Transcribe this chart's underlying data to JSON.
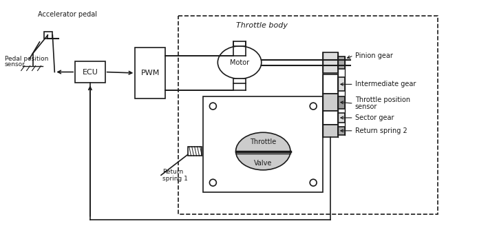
{
  "bg_color": "#ffffff",
  "line_color": "#1a1a1a",
  "figsize": [
    7.09,
    3.31
  ],
  "dpi": 100,
  "title_text": "Throttle body",
  "ecu_label": "ECU",
  "pwm_label": "PWM",
  "motor_label": "Motor",
  "throttle_label1": "Throttle",
  "throttle_label2": "Valve",
  "accel_label": "Accelerator pedal",
  "pedal_label1": "Pedal position",
  "pedal_label2": "sensor",
  "return_spring1_label1": "Return",
  "return_spring1_label2": "spring 1",
  "pinion_label": "Pinion gear",
  "intermediate_label": "Intermediate gear",
  "tps_label1": "Throttle position",
  "tps_label2": "sensor",
  "sector_label": "Sector gear",
  "return_spring2_label": "Return spring 2"
}
